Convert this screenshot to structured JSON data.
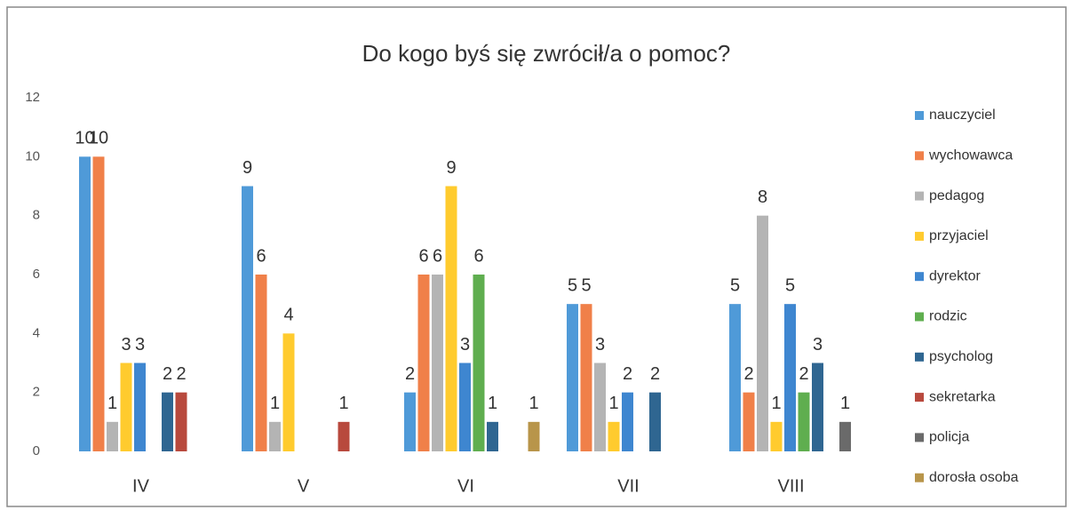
{
  "chart_data": {
    "type": "bar",
    "title": "Do kogo byś się zwrócił/a o pomoc?",
    "categories": [
      "IV",
      "V",
      "VI",
      "VII",
      "VIII"
    ],
    "series": [
      {
        "name": "nauczyciel",
        "color": "#4f9ad8",
        "values": [
          10,
          9,
          2,
          5,
          5
        ]
      },
      {
        "name": "wychowawca",
        "color": "#f08049",
        "values": [
          10,
          6,
          6,
          5,
          2
        ]
      },
      {
        "name": "pedagog",
        "color": "#b4b4b4",
        "values": [
          1,
          1,
          6,
          3,
          8
        ]
      },
      {
        "name": "przyjaciel",
        "color": "#ffcb2e",
        "values": [
          3,
          4,
          9,
          1,
          1
        ]
      },
      {
        "name": "dyrektor",
        "color": "#3e86d0",
        "values": [
          3,
          null,
          3,
          2,
          5
        ]
      },
      {
        "name": "rodzic",
        "color": "#5fae4f",
        "values": [
          null,
          null,
          6,
          null,
          2
        ]
      },
      {
        "name": "psycholog",
        "color": "#2f6691",
        "values": [
          2,
          null,
          1,
          2,
          3
        ]
      },
      {
        "name": "sekretarka",
        "color": "#b8493d",
        "values": [
          2,
          1,
          null,
          null,
          null
        ]
      },
      {
        "name": "policja",
        "color": "#6a6a6a",
        "values": [
          null,
          null,
          null,
          null,
          1
        ]
      },
      {
        "name": "dorosła osoba",
        "color": "#b8954a",
        "values": [
          null,
          null,
          1,
          null,
          null
        ]
      }
    ],
    "ylim": [
      0,
      12
    ],
    "yticks": [
      0,
      2,
      4,
      6,
      8,
      10,
      12
    ],
    "grid": false,
    "legend": "right"
  }
}
